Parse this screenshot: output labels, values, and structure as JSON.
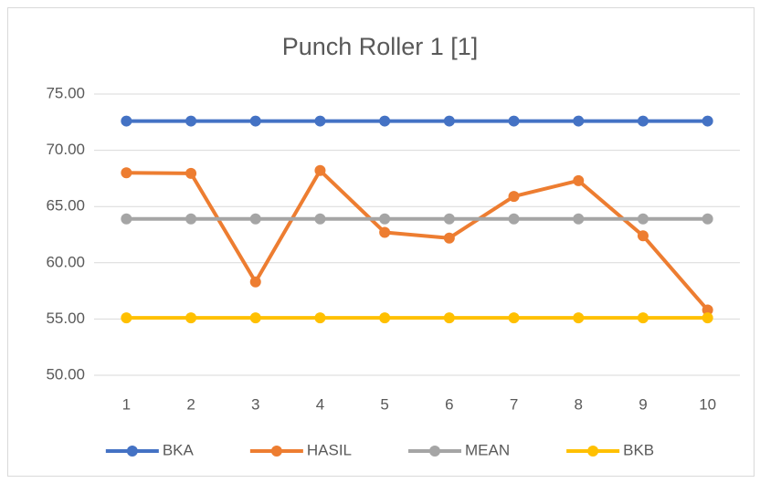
{
  "chart_data": {
    "type": "line",
    "title": "Punch Roller 1 [1]",
    "categories": [
      "1",
      "2",
      "3",
      "4",
      "5",
      "6",
      "7",
      "8",
      "9",
      "10"
    ],
    "series": [
      {
        "name": "BKA",
        "color": "#4472c4",
        "values": [
          72.6,
          72.6,
          72.6,
          72.6,
          72.6,
          72.6,
          72.6,
          72.6,
          72.6,
          72.6
        ]
      },
      {
        "name": "HASIL",
        "color": "#ed7d31",
        "values": [
          68.0,
          67.95,
          58.3,
          68.2,
          62.7,
          62.2,
          65.9,
          67.3,
          62.4,
          55.8
        ]
      },
      {
        "name": "MEAN",
        "color": "#a5a5a5",
        "values": [
          63.9,
          63.9,
          63.9,
          63.9,
          63.9,
          63.9,
          63.9,
          63.9,
          63.9,
          63.9
        ]
      },
      {
        "name": "BKB",
        "color": "#ffc000",
        "values": [
          55.1,
          55.1,
          55.1,
          55.1,
          55.1,
          55.1,
          55.1,
          55.1,
          55.1,
          55.1
        ]
      }
    ],
    "ylim": [
      50,
      75
    ],
    "yticks": [
      {
        "value": 50,
        "label": "50.00"
      },
      {
        "value": 55,
        "label": "55.00"
      },
      {
        "value": 60,
        "label": "60.00"
      },
      {
        "value": 65,
        "label": "65.00"
      },
      {
        "value": 70,
        "label": "70.00"
      },
      {
        "value": 75,
        "label": "75.00"
      }
    ],
    "grid": true,
    "legend": "bottom"
  }
}
